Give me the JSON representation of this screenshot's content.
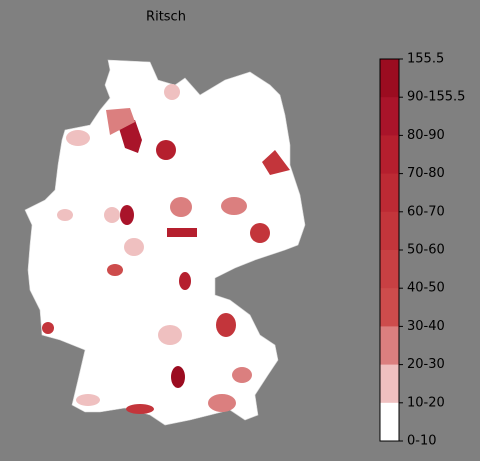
{
  "title": "Ritsch",
  "colorbar": {
    "labels": [
      "155.5",
      "90-155.5",
      "80-90",
      "70-80",
      "60-70",
      "50-60",
      "40-50",
      "30-40",
      "20-30",
      "10-20",
      "0-10"
    ],
    "colors": [
      "#9b0c20",
      "#a9142a",
      "#b51f2e",
      "#bd2a34",
      "#c3353b",
      "#c84043",
      "#cd4c4c",
      "#db7f7f",
      "#efc0c0",
      "#ffffff"
    ]
  }
}
